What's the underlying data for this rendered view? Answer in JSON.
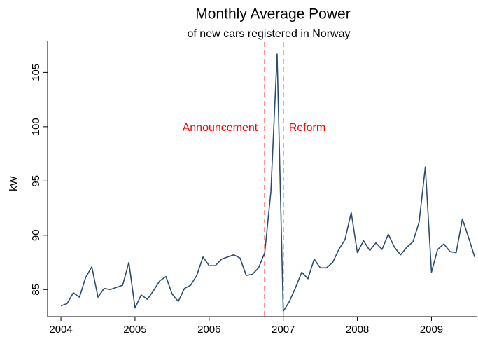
{
  "chart_data": {
    "type": "line",
    "title": "Monthly Average Power",
    "subtitle": "of new cars registered in Norway",
    "y_label": "kW",
    "x": [
      2004,
      2004.083,
      2004.167,
      2004.25,
      2004.333,
      2004.417,
      2004.5,
      2004.583,
      2004.667,
      2004.75,
      2004.833,
      2004.917,
      2005,
      2005.083,
      2005.167,
      2005.25,
      2005.333,
      2005.417,
      2005.5,
      2005.583,
      2005.667,
      2005.75,
      2005.833,
      2005.917,
      2006,
      2006.083,
      2006.167,
      2006.25,
      2006.333,
      2006.417,
      2006.5,
      2006.583,
      2006.667,
      2006.75,
      2006.833,
      2006.917,
      2007,
      2007.083,
      2007.167,
      2007.25,
      2007.333,
      2007.417,
      2007.5,
      2007.583,
      2007.667,
      2007.75,
      2007.833,
      2007.917,
      2008,
      2008.083,
      2008.167,
      2008.25,
      2008.333,
      2008.417,
      2008.5,
      2008.583,
      2008.667,
      2008.75,
      2008.833,
      2008.917,
      2009,
      2009.083,
      2009.167,
      2009.25,
      2009.333,
      2009.417,
      2009.5,
      2009.583
    ],
    "series": [
      {
        "name": "kW",
        "color": "#2b4c6f",
        "values": [
          83.5,
          83.7,
          84.7,
          84.3,
          86.1,
          87.1,
          84.3,
          85.1,
          85.0,
          85.2,
          85.4,
          87.5,
          83.3,
          84.5,
          84.1,
          84.9,
          85.8,
          86.2,
          84.6,
          83.9,
          85.1,
          85.4,
          86.3,
          88.0,
          87.2,
          87.2,
          87.8,
          88.0,
          88.2,
          87.9,
          86.3,
          86.4,
          87.0,
          88.4,
          94.0,
          106.7,
          83.0,
          83.9,
          85.2,
          86.6,
          86.0,
          87.8,
          87.0,
          87.0,
          87.5,
          88.7,
          89.6,
          92.1,
          88.4,
          89.5,
          88.6,
          89.3,
          88.7,
          90.1,
          88.9,
          88.2,
          88.9,
          89.4,
          91.2,
          96.3,
          86.6,
          88.7,
          89.2,
          88.5,
          88.4,
          91.5,
          89.8,
          88.0
        ]
      }
    ],
    "xlim": [
      2003.82,
      2009.6
    ],
    "xticks": [
      2004,
      2005,
      2006,
      2007,
      2008,
      2009
    ],
    "ylim": [
      82.5,
      107.8
    ],
    "yticks": [
      85,
      90,
      95,
      100,
      105
    ],
    "grid": false,
    "annotations": [
      {
        "x": 2006.75,
        "label": "Announcement",
        "color": "#ff0000"
      },
      {
        "x": 2007,
        "label": "Reform",
        "color": "#ff0000"
      }
    ]
  }
}
